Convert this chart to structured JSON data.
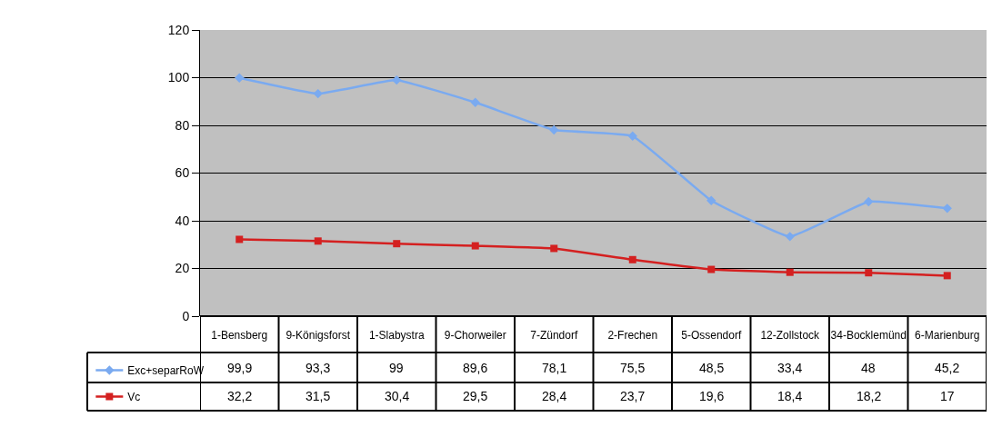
{
  "chart_data": {
    "type": "line",
    "categories": [
      "1-Bensberg",
      "9-Königsforst",
      "1-Slabystra",
      "9-Chorweiler",
      "7-Zündorf",
      "2-Frechen",
      "5-Ossendorf",
      "12-Zollstock",
      "34-Bocklemünd",
      "6-Marienburg"
    ],
    "series": [
      {
        "name": "Exc+separRoW",
        "color": "#7aaaf0",
        "marker": "diamond",
        "values": [
          99.9,
          93.3,
          99,
          89.6,
          78.1,
          75.5,
          48.5,
          33.4,
          48,
          45.2
        ],
        "value_labels": [
          "99,9",
          "93,3",
          "99",
          "89,6",
          "78,1",
          "75,5",
          "48,5",
          "33,4",
          "48",
          "45,2"
        ]
      },
      {
        "name": "Vc",
        "color": "#d42020",
        "marker": "square",
        "values": [
          32.2,
          31.5,
          30.4,
          29.5,
          28.4,
          23.7,
          19.6,
          18.4,
          18.2,
          17
        ],
        "value_labels": [
          "32,2",
          "31,5",
          "30,4",
          "29,5",
          "28,4",
          "23,7",
          "19,6",
          "18,4",
          "18,2",
          "17"
        ]
      }
    ],
    "ylim": [
      0,
      120
    ],
    "yticks": [
      0,
      20,
      40,
      60,
      80,
      100,
      120
    ],
    "grid": "y",
    "legend": "bottom left",
    "line_style": "solid"
  }
}
